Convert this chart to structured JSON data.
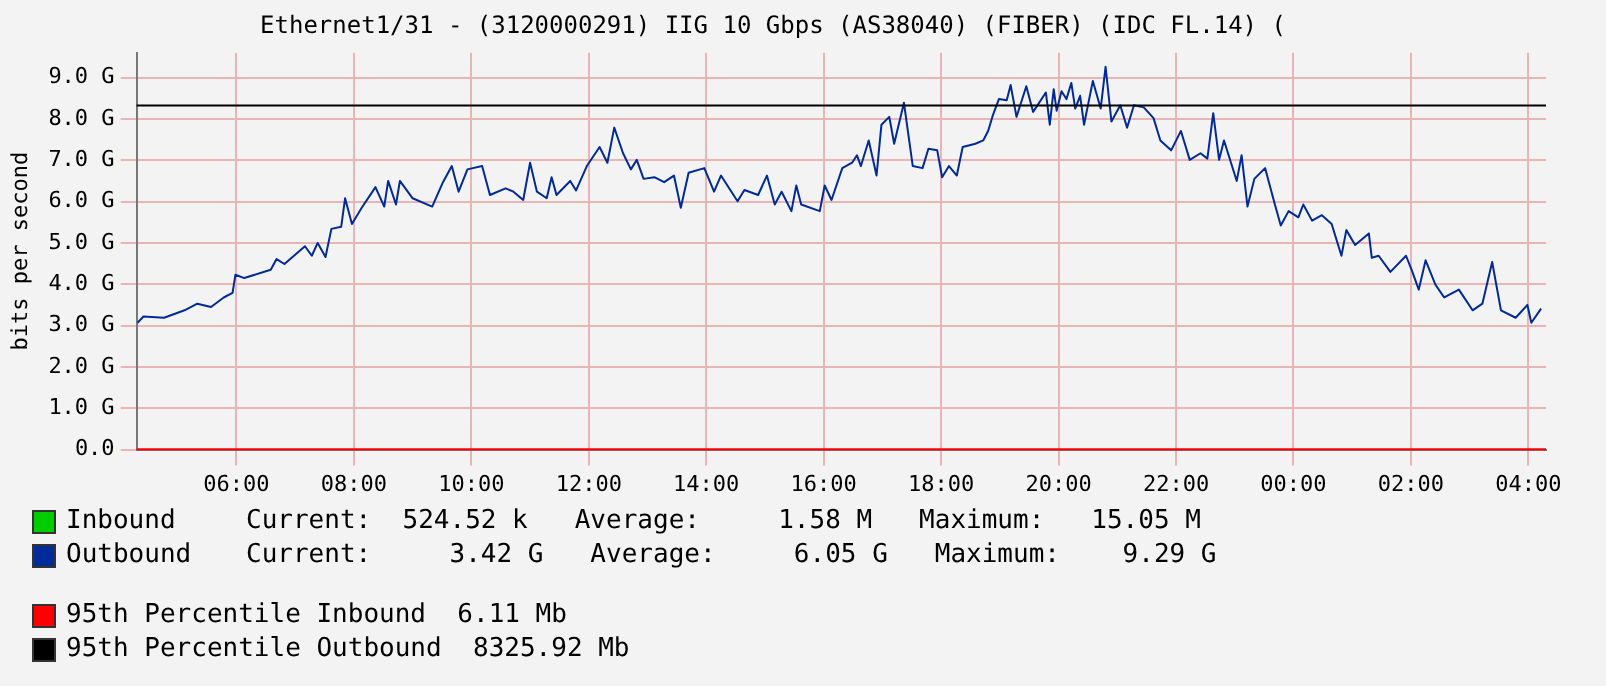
{
  "chart_data": {
    "type": "line",
    "title": "Ethernet1/31 - (3120000291) IIG 10 Gbps (AS38040) (FIBER) (IDC FL.14) (",
    "ylabel": "bits per second",
    "x": [
      "2000-01-01T04:19",
      "2000-01-01T04:25",
      "2000-01-01T04:46",
      "2000-01-01T05:07",
      "2000-01-01T05:20",
      "2000-01-01T05:34",
      "2000-01-01T05:47",
      "2000-01-01T05:56",
      "2000-01-01T05:59",
      "2000-01-01T06:08",
      "2000-01-01T06:35",
      "2000-01-01T06:41",
      "2000-01-01T06:49",
      "2000-01-01T07:10",
      "2000-01-01T07:17",
      "2000-01-01T07:23",
      "2000-01-01T07:31",
      "2000-01-01T07:37",
      "2000-01-01T07:47",
      "2000-01-01T07:51",
      "2000-01-01T07:58",
      "2000-01-01T08:08",
      "2000-01-01T08:22",
      "2000-01-01T08:31",
      "2000-01-01T08:35",
      "2000-01-01T08:43",
      "2000-01-01T08:47",
      "2000-01-01T09:00",
      "2000-01-01T09:20",
      "2000-01-01T09:31",
      "2000-01-01T09:40",
      "2000-01-01T09:47",
      "2000-01-01T09:56",
      "2000-01-01T10:11",
      "2000-01-01T10:19",
      "2000-01-01T10:35",
      "2000-01-01T10:43",
      "2000-01-01T10:53",
      "2000-01-01T11:00",
      "2000-01-01T11:07",
      "2000-01-01T11:17",
      "2000-01-01T11:22",
      "2000-01-01T11:27",
      "2000-01-01T11:41",
      "2000-01-01T11:47",
      "2000-01-01T11:58",
      "2000-01-01T12:11",
      "2000-01-01T12:19",
      "2000-01-01T12:26",
      "2000-01-01T12:35",
      "2000-01-01T12:43",
      "2000-01-01T12:49",
      "2000-01-01T12:56",
      "2000-01-01T13:07",
      "2000-01-01T13:17",
      "2000-01-01T13:27",
      "2000-01-01T13:34",
      "2000-01-01T13:42",
      "2000-01-01T13:58",
      "2000-01-01T14:08",
      "2000-01-01T14:15",
      "2000-01-01T14:32",
      "2000-01-01T14:39",
      "2000-01-01T14:53",
      "2000-01-01T15:02",
      "2000-01-01T15:10",
      "2000-01-01T15:17",
      "2000-01-01T15:27",
      "2000-01-01T15:32",
      "2000-01-01T15:37",
      "2000-01-01T15:56",
      "2000-01-01T16:01",
      "2000-01-01T16:08",
      "2000-01-01T16:19",
      "2000-01-01T16:29",
      "2000-01-01T16:34",
      "2000-01-01T16:38",
      "2000-01-01T16:46",
      "2000-01-01T16:54",
      "2000-01-01T16:59",
      "2000-01-01T17:07",
      "2000-01-01T17:12",
      "2000-01-01T17:22",
      "2000-01-01T17:31",
      "2000-01-01T17:41",
      "2000-01-01T17:47",
      "2000-01-01T17:56",
      "2000-01-01T18:01",
      "2000-01-01T18:08",
      "2000-01-01T18:16",
      "2000-01-01T18:22",
      "2000-01-01T18:35",
      "2000-01-01T18:43",
      "2000-01-01T18:48",
      "2000-01-01T18:53",
      "2000-01-01T18:59",
      "2000-01-01T19:07",
      "2000-01-01T19:11",
      "2000-01-01T19:17",
      "2000-01-01T19:27",
      "2000-01-01T19:34",
      "2000-01-01T19:47",
      "2000-01-01T19:51",
      "2000-01-01T19:55",
      "2000-01-01T19:58",
      "2000-01-01T20:03",
      "2000-01-01T20:08",
      "2000-01-01T20:13",
      "2000-01-01T20:17",
      "2000-01-01T20:22",
      "2000-01-01T20:26",
      "2000-01-01T20:35",
      "2000-01-01T20:43",
      "2000-01-01T20:48",
      "2000-01-01T20:54",
      "2000-01-01T21:03",
      "2000-01-01T21:10",
      "2000-01-01T21:17",
      "2000-01-01T21:27",
      "2000-01-01T21:37",
      "2000-01-01T21:44",
      "2000-01-01T21:55",
      "2000-01-01T22:05",
      "2000-01-01T22:14",
      "2000-01-01T22:25",
      "2000-01-01T22:32",
      "2000-01-01T22:38",
      "2000-01-01T22:44",
      "2000-01-01T22:49",
      "2000-01-01T23:02",
      "2000-01-01T23:07",
      "2000-01-01T23:13",
      "2000-01-01T23:20",
      "2000-01-01T23:31",
      "2000-01-01T23:41",
      "2000-01-01T23:47",
      "2000-01-01T23:55",
      "2000-01-02T00:05",
      "2000-01-02T00:10",
      "2000-01-02T00:19",
      "2000-01-02T00:29",
      "2000-01-02T00:39",
      "2000-01-02T00:49",
      "2000-01-02T00:54",
      "2000-01-02T01:03",
      "2000-01-02T01:17",
      "2000-01-02T01:20",
      "2000-01-02T01:27",
      "2000-01-02T01:39",
      "2000-01-02T01:55",
      "2000-01-02T02:01",
      "2000-01-02T02:08",
      "2000-01-02T02:15",
      "2000-01-02T02:25",
      "2000-01-02T02:34",
      "2000-01-02T02:49",
      "2000-01-02T03:03",
      "2000-01-02T03:13",
      "2000-01-02T03:23",
      "2000-01-02T03:32",
      "2000-01-02T03:47",
      "2000-01-02T03:59",
      "2000-01-02T04:03",
      "2000-01-02T04:13"
    ],
    "series": [
      {
        "name": "Inbound",
        "color": "#00cc00",
        "values": [
          null,
          null,
          null,
          null,
          null,
          null,
          null,
          null,
          null,
          null,
          null,
          null,
          null,
          null,
          null,
          null,
          null,
          null,
          null,
          null,
          null,
          null,
          null,
          null,
          null,
          null,
          null,
          null,
          null,
          null,
          null,
          null,
          null,
          null,
          null,
          null,
          null,
          null,
          null,
          null,
          null,
          null,
          null,
          null,
          null,
          null,
          null,
          null,
          null,
          null,
          null,
          null,
          null,
          null,
          null,
          null,
          null,
          null,
          null,
          null,
          null,
          null,
          null,
          null,
          null,
          null,
          null,
          null,
          null,
          null,
          null,
          null,
          null,
          null,
          null,
          null,
          null,
          null,
          null,
          null,
          null,
          null,
          null,
          null,
          null,
          null,
          null,
          null,
          null,
          null,
          null,
          null,
          null,
          null,
          null,
          null,
          null,
          null,
          null,
          null,
          null,
          null,
          null,
          null,
          null,
          null,
          null,
          null,
          null,
          null,
          null,
          null,
          null,
          null,
          null,
          null,
          null,
          null,
          null,
          null,
          null,
          null,
          null,
          null,
          null,
          null,
          null,
          null,
          null,
          null,
          null,
          null,
          null,
          null,
          null,
          null,
          null,
          null,
          null,
          null,
          null,
          null,
          null,
          null,
          null,
          null,
          null,
          null,
          null,
          null,
          null,
          null,
          null,
          null,
          null,
          null,
          null,
          null,
          null,
          null,
          null,
          null,
          null,
          null
        ]
      },
      {
        "name": "Outbound",
        "color": "#002a97",
        "values": [
          3.07,
          3.22,
          3.19,
          3.37,
          3.53,
          3.45,
          3.68,
          3.79,
          4.23,
          4.15,
          4.35,
          4.61,
          4.49,
          4.92,
          4.69,
          5.0,
          4.66,
          5.34,
          5.39,
          6.08,
          5.46,
          5.85,
          6.35,
          5.88,
          6.5,
          5.93,
          6.5,
          6.08,
          5.88,
          6.47,
          6.86,
          6.24,
          6.78,
          6.86,
          6.16,
          6.32,
          6.24,
          6.04,
          6.94,
          6.24,
          6.08,
          6.59,
          6.16,
          6.5,
          6.27,
          6.86,
          7.32,
          6.94,
          7.79,
          7.17,
          6.78,
          7.01,
          6.55,
          6.59,
          6.47,
          6.63,
          5.85,
          6.7,
          6.81,
          6.24,
          6.63,
          6.01,
          6.28,
          6.16,
          6.63,
          5.93,
          6.24,
          5.77,
          6.39,
          5.93,
          5.77,
          6.39,
          6.04,
          6.81,
          6.94,
          7.12,
          6.86,
          7.48,
          6.63,
          7.86,
          8.05,
          7.4,
          8.39,
          6.86,
          6.81,
          7.28,
          7.24,
          6.59,
          6.86,
          6.63,
          7.32,
          7.4,
          7.48,
          7.71,
          8.1,
          8.48,
          8.45,
          8.82,
          8.05,
          8.79,
          8.17,
          8.64,
          7.86,
          8.72,
          8.2,
          8.67,
          8.48,
          8.87,
          8.25,
          8.56,
          7.86,
          8.92,
          8.25,
          9.26,
          7.94,
          8.33,
          7.79,
          8.33,
          8.28,
          8.02,
          7.48,
          7.24,
          7.71,
          7.01,
          7.17,
          7.04,
          8.14,
          7.01,
          7.48,
          6.5,
          7.12,
          5.88,
          6.55,
          6.81,
          5.93,
          5.42,
          5.77,
          5.62,
          5.93,
          5.54,
          5.67,
          5.46,
          4.69,
          5.31,
          4.95,
          5.23,
          4.64,
          4.69,
          4.3,
          4.69,
          4.33,
          3.87,
          4.58,
          3.99,
          3.68,
          3.87,
          3.37,
          3.53,
          4.54,
          3.37,
          3.19,
          3.5,
          3.07,
          3.41
        ]
      }
    ],
    "annotations": [
      "Current:  524.52 k   Average:     1.58 M   Maximum:   15.05 M",
      "Current:     3.42 G   Average:     6.05 G   Maximum:    9.29 G"
    ],
    "ref_lines": [
      {
        "axis": "y",
        "value": 0.00611,
        "label": "95th Percentile Inbound  6.11 Mb",
        "color": "#ff0000"
      },
      {
        "axis": "y",
        "value": 8.32592,
        "label": "95th Percentile Outbound  8325.92 Mb",
        "color": "#000000"
      }
    ],
    "xlim": [
      "2000-01-01T04:18",
      "2000-01-02T04:18"
    ],
    "xticks": [
      {
        "value": "2000-01-01T06:00",
        "label": "06:00"
      },
      {
        "value": "2000-01-01T08:00",
        "label": "08:00"
      },
      {
        "value": "2000-01-01T10:00",
        "label": "10:00"
      },
      {
        "value": "2000-01-01T12:00",
        "label": "12:00"
      },
      {
        "value": "2000-01-01T14:00",
        "label": "14:00"
      },
      {
        "value": "2000-01-01T16:00",
        "label": "16:00"
      },
      {
        "value": "2000-01-01T18:00",
        "label": "18:00"
      },
      {
        "value": "2000-01-01T20:00",
        "label": "20:00"
      },
      {
        "value": "2000-01-01T22:00",
        "label": "22:00"
      },
      {
        "value": "2000-01-02T00:00",
        "label": "00:00"
      },
      {
        "value": "2000-01-02T02:00",
        "label": "02:00"
      },
      {
        "value": "2000-01-02T04:00",
        "label": "04:00"
      }
    ],
    "ylim": [
      0,
      9.6
    ],
    "yticks": [
      {
        "value": 0,
        "label": "0.0"
      },
      {
        "value": 1,
        "label": "1.0 G"
      },
      {
        "value": 2,
        "label": "2.0 G"
      },
      {
        "value": 3,
        "label": "3.0 G"
      },
      {
        "value": 4,
        "label": "4.0 G"
      },
      {
        "value": 5,
        "label": "5.0 G"
      },
      {
        "value": 6,
        "label": "6.0 G"
      },
      {
        "value": 7,
        "label": "7.0 G"
      },
      {
        "value": 8,
        "label": "8.0 G"
      },
      {
        "value": 9,
        "label": "9.0 G"
      }
    ],
    "grid": true,
    "legend": "bottom",
    "marker": "none",
    "line_style": "solid"
  }
}
